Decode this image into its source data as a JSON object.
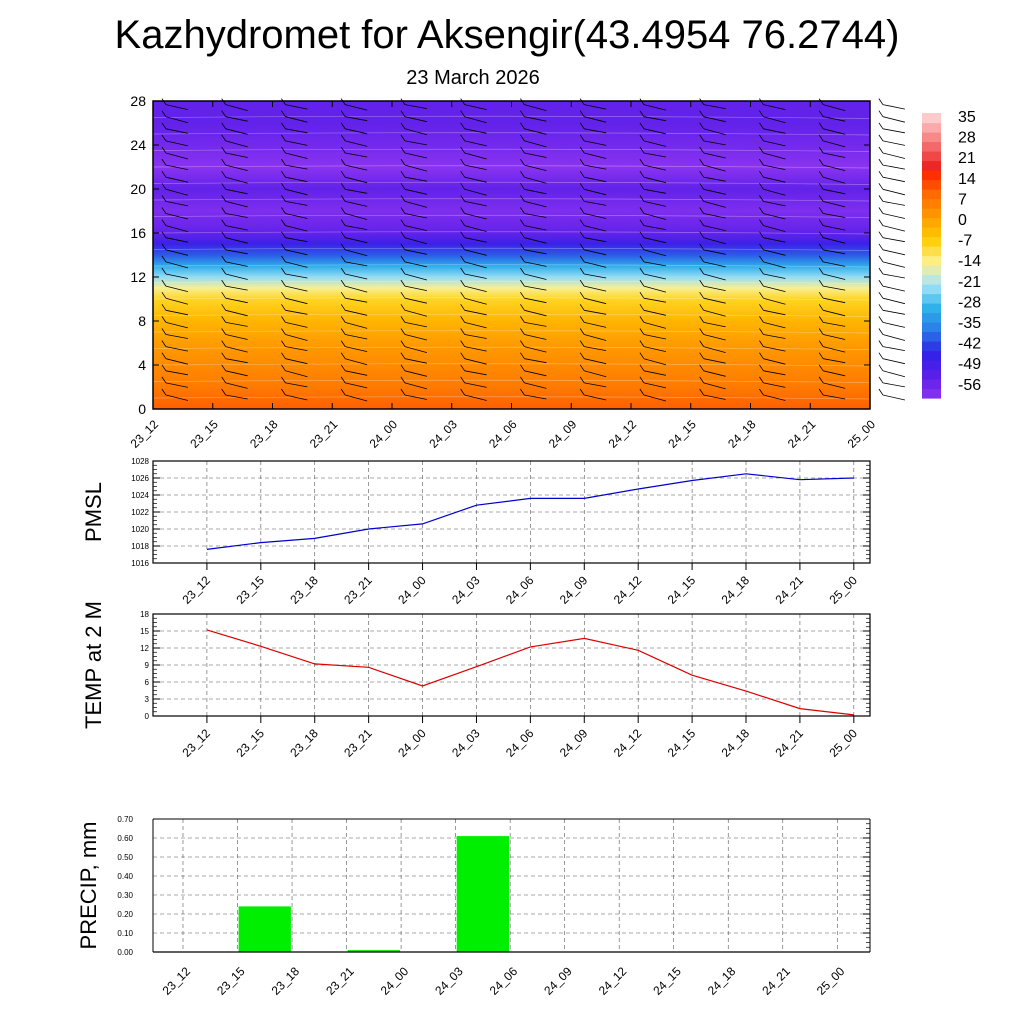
{
  "title": "Kazhydromet for Aksengir(43.4954 76.2744)",
  "subtitle": "23 March 2026",
  "time_labels": [
    "23_12",
    "23_15",
    "23_18",
    "23_21",
    "24_00",
    "24_03",
    "24_06",
    "24_09",
    "24_12",
    "24_15",
    "24_18",
    "24_21",
    "25_00"
  ],
  "chart_data": [
    {
      "type": "heatmap",
      "title": "",
      "xlabel": "",
      "ylabel": "",
      "x": [
        "23_12",
        "23_15",
        "23_18",
        "23_21",
        "24_00",
        "24_03",
        "24_06",
        "24_09",
        "24_12",
        "24_15",
        "24_18",
        "24_21",
        "25_00"
      ],
      "ylim": [
        0,
        28
      ],
      "yticks": [
        0,
        4,
        8,
        12,
        16,
        20,
        24,
        28
      ],
      "colorbar_labels": [
        "35",
        "28",
        "21",
        "14",
        "7",
        "0",
        "-7",
        "-14",
        "-21",
        "-28",
        "-35",
        "-42",
        "-49",
        "-56"
      ],
      "colorbar_range": [
        -63,
        42
      ],
      "temperature_profile": [
        {
          "y": 0,
          "value": 14
        },
        {
          "y": 2,
          "value": 10
        },
        {
          "y": 4,
          "value": 7
        },
        {
          "y": 6,
          "value": 4
        },
        {
          "y": 8,
          "value": 0
        },
        {
          "y": 10,
          "value": -6
        },
        {
          "y": 11,
          "value": -13
        },
        {
          "y": 12,
          "value": -22
        },
        {
          "y": 13,
          "value": -30
        },
        {
          "y": 14,
          "value": -40
        },
        {
          "y": 15,
          "value": -48
        },
        {
          "y": 16,
          "value": -55
        },
        {
          "y": 18,
          "value": -60
        },
        {
          "y": 20,
          "value": -55
        },
        {
          "y": 22,
          "value": -62
        },
        {
          "y": 24,
          "value": -58
        },
        {
          "y": 26,
          "value": -55
        },
        {
          "y": 28,
          "value": -55
        }
      ],
      "wind_barbs": "black wind barbs at every level and time",
      "colors": {
        "colorscale": [
          "#ff2200",
          "#ff6a00",
          "#ff9a00",
          "#ffcc00",
          "#fff08a",
          "#a8e4f8",
          "#2fb4ea",
          "#2a7ae6",
          "#2f22e8",
          "#5a1fe8",
          "#8a33f0"
        ]
      }
    },
    {
      "type": "line",
      "ylabel": "PMSL",
      "x": [
        "23_12",
        "23_15",
        "23_18",
        "23_21",
        "24_00",
        "24_03",
        "24_06",
        "24_09",
        "24_12",
        "24_15",
        "24_18",
        "24_21",
        "25_00"
      ],
      "values": [
        1017.6,
        1018.4,
        1018.9,
        1020.0,
        1020.6,
        1022.8,
        1023.6,
        1023.6,
        1024.7,
        1025.7,
        1026.5,
        1025.8,
        1026.0
      ],
      "ylim": [
        1016,
        1028
      ],
      "yticks": [
        1016,
        1018,
        1020,
        1022,
        1024,
        1026,
        1028
      ],
      "grid": true,
      "color": "#0000cc"
    },
    {
      "type": "line",
      "ylabel": "TEMP at 2 M",
      "x": [
        "23_12",
        "23_15",
        "23_18",
        "23_21",
        "24_00",
        "24_03",
        "24_06",
        "24_09",
        "24_12",
        "24_15",
        "24_18",
        "24_21",
        "25_00"
      ],
      "values": [
        15.2,
        12.3,
        9.2,
        8.6,
        5.3,
        8.7,
        12.2,
        13.7,
        11.6,
        7.2,
        4.4,
        1.3,
        0.2
      ],
      "ylim": [
        0,
        18
      ],
      "yticks": [
        0,
        3,
        6,
        9,
        12,
        15,
        18
      ],
      "grid": true,
      "color": "#dd0000"
    },
    {
      "type": "bar",
      "ylabel": "PRECIP, mm",
      "categories": [
        "23_12",
        "23_15",
        "23_18",
        "23_21",
        "24_00",
        "24_03",
        "24_06",
        "24_09",
        "24_12",
        "24_15",
        "24_18",
        "24_21",
        "25_00"
      ],
      "values": [
        0.0,
        0.24,
        0.0,
        0.01,
        0.0,
        0.61,
        0.0,
        0.0,
        0.0,
        0.0,
        0.0,
        0.0,
        0.0
      ],
      "ylim": [
        0,
        0.7
      ],
      "yticks": [
        "0.00",
        "0.10",
        "0.20",
        "0.30",
        "0.40",
        "0.50",
        "0.60",
        "0.70"
      ],
      "grid": true,
      "color": "#00ee00"
    }
  ]
}
